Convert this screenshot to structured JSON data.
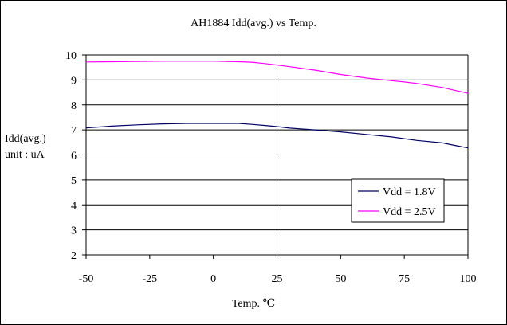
{
  "chart_data": {
    "type": "line",
    "title": "AH1884 Idd(avg.) vs Temp.",
    "xlabel": "Temp. ℃",
    "ylabel_lines": [
      "Idd(avg.)",
      "unit : uA"
    ],
    "xlim": [
      -50,
      100
    ],
    "ylim": [
      2,
      10
    ],
    "x_ticks": [
      -50,
      -25,
      0,
      25,
      50,
      75,
      100
    ],
    "y_ticks": [
      2,
      3,
      4,
      5,
      6,
      7,
      8,
      9,
      10
    ],
    "grid": "horizontal",
    "reference_line_x": 25,
    "legend_position": "bottom-right",
    "series": [
      {
        "name": "Vdd = 1.8V",
        "color": "#000066",
        "x": [
          -50,
          -40,
          -30,
          -20,
          -10,
          0,
          10,
          15,
          20,
          25,
          30,
          40,
          50,
          60,
          70,
          75,
          80,
          90,
          95,
          100
        ],
        "y": [
          7.08,
          7.15,
          7.2,
          7.24,
          7.26,
          7.26,
          7.26,
          7.22,
          7.18,
          7.13,
          7.07,
          7.0,
          6.92,
          6.82,
          6.72,
          6.65,
          6.58,
          6.48,
          6.38,
          6.28
        ]
      },
      {
        "name": "Vdd = 2.5V",
        "color": "#FF00FF",
        "x": [
          -50,
          -40,
          -30,
          -20,
          -10,
          0,
          5,
          10,
          15,
          20,
          25,
          30,
          40,
          50,
          60,
          70,
          75,
          80,
          90,
          95,
          100
        ],
        "y": [
          9.72,
          9.73,
          9.74,
          9.75,
          9.75,
          9.75,
          9.74,
          9.73,
          9.71,
          9.66,
          9.6,
          9.53,
          9.39,
          9.22,
          9.08,
          8.97,
          8.92,
          8.86,
          8.7,
          8.58,
          8.47
        ]
      }
    ]
  }
}
